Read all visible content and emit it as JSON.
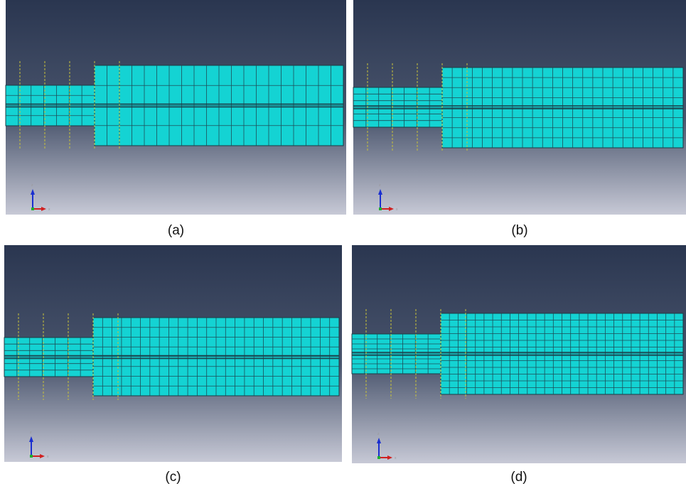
{
  "panels": [
    {
      "caption": "(a)",
      "triad": {
        "vertical": "z",
        "horizontal": "x"
      }
    },
    {
      "caption": "(b)",
      "triad": {
        "vertical": "z",
        "horizontal": "x"
      }
    },
    {
      "caption": "(c)",
      "triad": {
        "vertical": "z",
        "horizontal": "x"
      }
    },
    {
      "caption": "(d)",
      "triad": {
        "vertical": "z",
        "horizontal": "x"
      }
    }
  ]
}
